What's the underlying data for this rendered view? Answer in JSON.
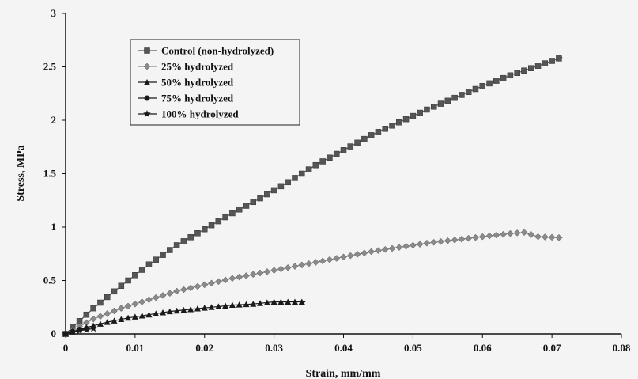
{
  "chart_data": {
    "type": "scatter",
    "xlabel": "Strain, mm/mm",
    "ylabel": "Stress, MPa",
    "xlim": [
      0,
      0.08
    ],
    "ylim": [
      0,
      3
    ],
    "xticks": [
      "0",
      "0.01",
      "0.02",
      "0.03",
      "0.04",
      "0.05",
      "0.06",
      "0.07",
      "0.08"
    ],
    "yticks": [
      "0",
      "0.5",
      "1",
      "1.5",
      "2",
      "2.5",
      "3"
    ],
    "grid": false,
    "legend_position": "top-left",
    "series": [
      {
        "name": "Control (non-hydrolyzed)",
        "marker": "square",
        "color": "#555555",
        "x": [
          0,
          0.004,
          0.008,
          0.012,
          0.016,
          0.02,
          0.024,
          0.028,
          0.032,
          0.036,
          0.04,
          0.044,
          0.048,
          0.052,
          0.056,
          0.06,
          0.064,
          0.068,
          0.0715
        ],
        "y": [
          0,
          0.24,
          0.45,
          0.65,
          0.83,
          0.98,
          1.13,
          1.27,
          1.42,
          1.58,
          1.72,
          1.86,
          1.98,
          2.1,
          2.21,
          2.32,
          2.42,
          2.51,
          2.59
        ]
      },
      {
        "name": "25% hydrolyzed",
        "marker": "diamond",
        "color": "#8a8a8a",
        "x": [
          0,
          0.004,
          0.008,
          0.012,
          0.016,
          0.02,
          0.024,
          0.028,
          0.032,
          0.036,
          0.04,
          0.044,
          0.048,
          0.052,
          0.056,
          0.06,
          0.064,
          0.066,
          0.068,
          0.0715
        ],
        "y": [
          0,
          0.14,
          0.24,
          0.32,
          0.4,
          0.46,
          0.52,
          0.57,
          0.62,
          0.67,
          0.72,
          0.77,
          0.81,
          0.85,
          0.88,
          0.91,
          0.94,
          0.95,
          0.91,
          0.9
        ]
      },
      {
        "name": "50% hydrolyzed",
        "marker": "triangle",
        "color": "#1a1a1a",
        "x": [
          0,
          0.003,
          0.006,
          0.009,
          0.012,
          0.015,
          0.018,
          0.021,
          0.024,
          0.027,
          0.03,
          0.033,
          0.0345
        ],
        "y": [
          0,
          0.06,
          0.11,
          0.15,
          0.18,
          0.21,
          0.23,
          0.25,
          0.27,
          0.28,
          0.3,
          0.3,
          0.3
        ]
      },
      {
        "name": "75% hydrolyzed",
        "marker": "circle",
        "color": "#1a1a1a",
        "x": [
          0,
          0.001,
          0.002,
          0.003
        ],
        "y": [
          0,
          0.02,
          0.04,
          0.05
        ]
      },
      {
        "name": "100% hydrolyzed",
        "marker": "star",
        "color": "#1a1a1a",
        "x": [
          0,
          0.001,
          0.002,
          0.003,
          0.004
        ],
        "y": [
          0,
          0.02,
          0.03,
          0.04,
          0.05
        ]
      }
    ],
    "legend": [
      "Control (non-hydrolyzed)",
      "25% hydrolyzed",
      "50% hydrolyzed",
      "75% hydrolyzed",
      "100% hydrolyzed"
    ]
  }
}
